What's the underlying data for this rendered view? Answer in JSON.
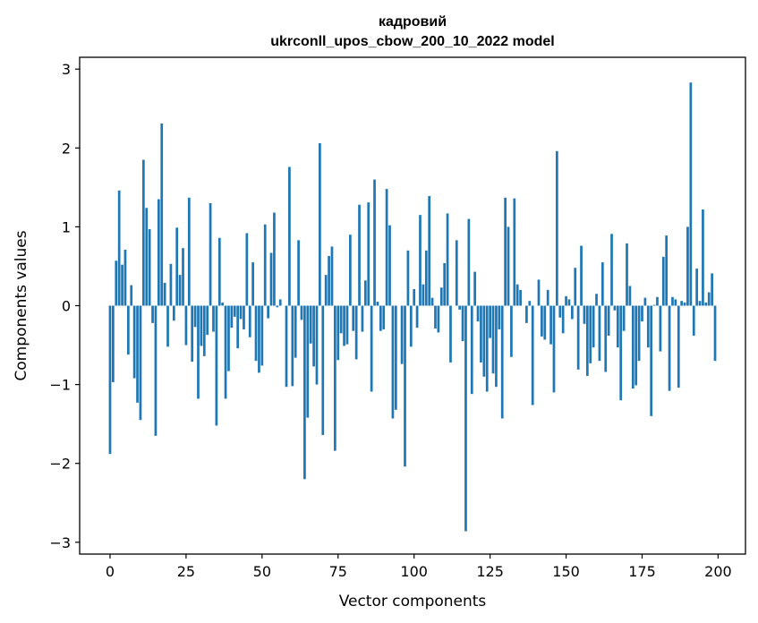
{
  "chart_data": {
    "type": "bar",
    "title_line1": "кадровий",
    "title_line2": "ukrconll_upos_cbow_200_10_2022 model",
    "xlabel": "Vector components",
    "ylabel": "Components values",
    "xlim": [
      -10,
      209
    ],
    "ylim": [
      -3.15,
      3.15
    ],
    "xticks": [
      0,
      25,
      50,
      75,
      100,
      125,
      150,
      175,
      200
    ],
    "yticks": [
      -3,
      -2,
      -1,
      0,
      1,
      2,
      3
    ],
    "ytick_labels": [
      "−3",
      "−2",
      "−1",
      "0",
      "1",
      "2",
      "3"
    ],
    "bar_color": "#1f77b4",
    "values": [
      -1.88,
      -0.97,
      0.57,
      1.46,
      0.52,
      0.71,
      -0.62,
      0.26,
      -0.92,
      -1.23,
      -1.45,
      1.85,
      1.24,
      0.97,
      -0.22,
      -1.65,
      1.35,
      2.31,
      0.29,
      -0.52,
      0.53,
      -0.19,
      0.99,
      0.39,
      0.73,
      -0.5,
      1.37,
      -0.71,
      -0.27,
      -1.18,
      -0.51,
      -0.64,
      -0.37,
      1.3,
      -0.33,
      -1.52,
      0.86,
      0.04,
      -1.18,
      -0.83,
      -0.28,
      -0.14,
      -0.54,
      -0.17,
      -0.3,
      0.92,
      -0.4,
      0.55,
      -0.7,
      -0.85,
      -0.76,
      1.03,
      -0.16,
      0.67,
      1.18,
      -0.02,
      0.08,
      0.0,
      -1.03,
      1.76,
      -1.02,
      -0.66,
      0.83,
      -0.18,
      -2.2,
      -1.42,
      -0.48,
      -0.77,
      -1.0,
      2.06,
      -1.64,
      0.39,
      0.63,
      0.75,
      -1.84,
      -0.69,
      -0.35,
      -0.51,
      -0.49,
      0.9,
      -0.32,
      -0.68,
      1.28,
      -0.33,
      0.32,
      1.31,
      -1.09,
      1.6,
      0.05,
      -0.32,
      -0.3,
      1.48,
      1.02,
      -1.43,
      -1.32,
      0.0,
      -0.74,
      -2.04,
      0.7,
      -0.52,
      0.21,
      -0.28,
      1.15,
      0.27,
      0.7,
      1.39,
      0.1,
      -0.29,
      -0.34,
      0.23,
      0.54,
      1.17,
      -0.72,
      0.0,
      0.83,
      -0.05,
      -0.45,
      -2.86,
      1.1,
      -1.12,
      0.43,
      -0.2,
      -0.72,
      -0.9,
      -1.09,
      -0.41,
      -0.86,
      -1.03,
      -0.3,
      -1.43,
      1.37,
      1.0,
      -0.65,
      1.36,
      0.27,
      0.2,
      0.0,
      -0.22,
      0.06,
      -1.26,
      0.0,
      0.33,
      -0.39,
      -0.43,
      0.2,
      -0.49,
      -1.1,
      1.96,
      -0.15,
      -0.35,
      0.12,
      0.08,
      -0.17,
      0.48,
      -0.81,
      0.76,
      -0.23,
      -0.89,
      -0.73,
      -0.53,
      0.15,
      -0.7,
      0.55,
      -0.84,
      -0.38,
      0.91,
      -0.06,
      -0.53,
      -1.2,
      -0.32,
      0.79,
      0.25,
      -1.05,
      -1.01,
      -0.7,
      -0.2,
      0.1,
      -0.53,
      -1.4,
      0.01,
      0.11,
      -0.58,
      0.62,
      0.89,
      -1.08,
      0.11,
      0.08,
      -1.04,
      0.06,
      0.04,
      1.0,
      2.83,
      -0.38,
      0.47,
      0.06,
      1.22,
      0.04,
      0.17,
      0.41,
      -0.7
    ]
  }
}
